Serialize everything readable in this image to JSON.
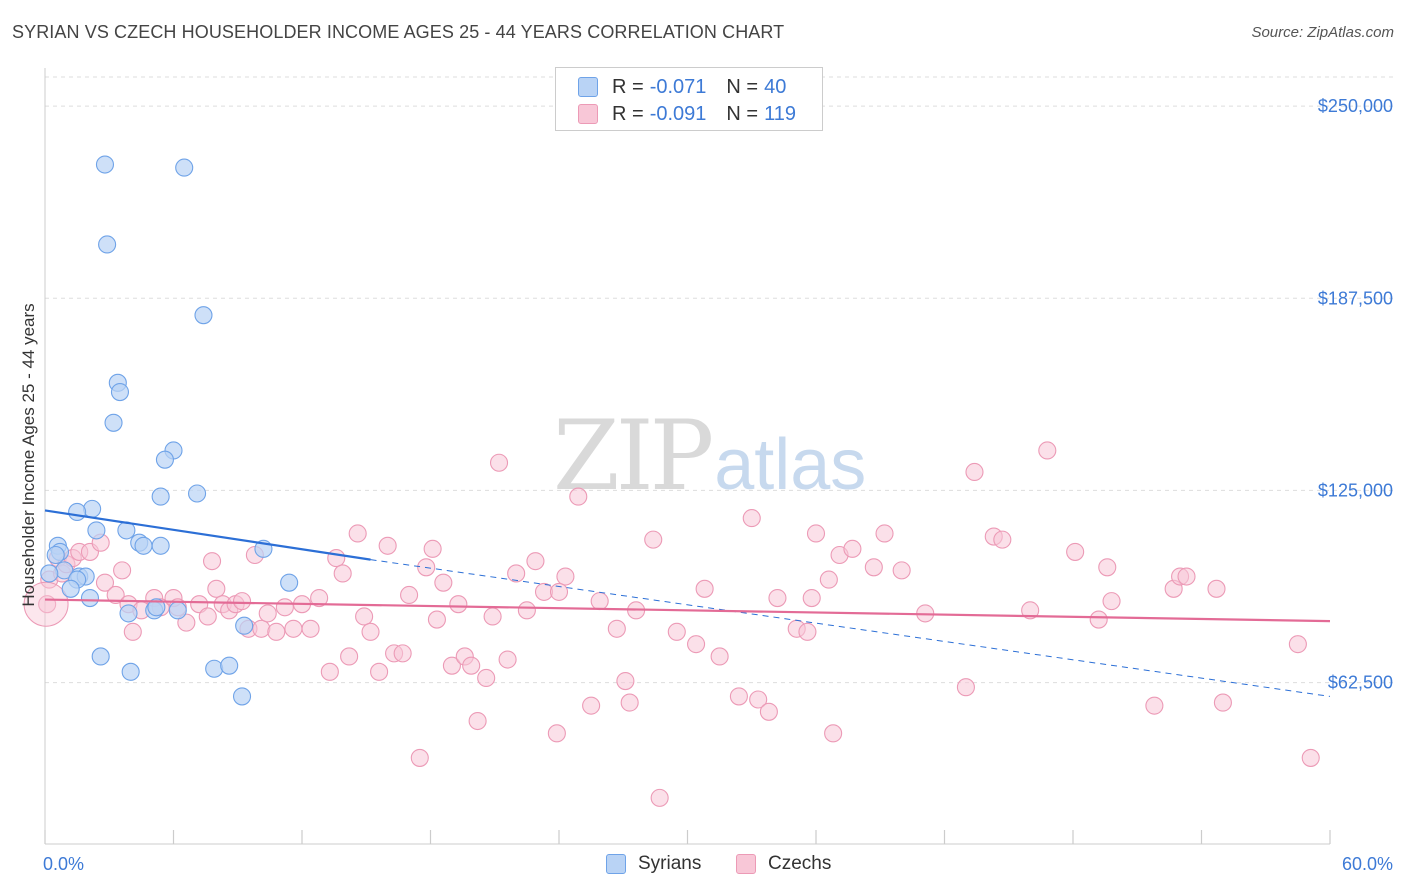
{
  "header": {
    "title": "SYRIAN VS CZECH HOUSEHOLDER INCOME AGES 25 - 44 YEARS CORRELATION CHART",
    "source": "Source: ZipAtlas.com"
  },
  "watermark": {
    "zip": "ZIP",
    "atlas": "atlas"
  },
  "legend": {
    "r_label": "R =",
    "n_label": "N =",
    "rows": [
      {
        "series": "Syrians",
        "r": "-0.071",
        "n": "40",
        "color": "#6fa3e8",
        "fill": "#b9d3f5"
      },
      {
        "series": "Czechs",
        "r": "-0.091",
        "n": "119",
        "color": "#ec9ab6",
        "fill": "#f8c7d7"
      }
    ]
  },
  "bottom_legend": [
    "Syrians",
    "Czechs"
  ],
  "colors": {
    "syrian_point_fill": "#b9d3f5",
    "syrian_point_stroke": "#6fa3e8",
    "czech_point_fill": "#f8c7d7",
    "czech_point_stroke": "#ec9ab6",
    "syrian_line": "#2c6fd6",
    "czech_line": "#e36b96",
    "grid": "#dddddd",
    "tick_label": "#3d7ad6"
  },
  "chart_data": {
    "type": "scatter",
    "title": "SYRIAN VS CZECH HOUSEHOLDER INCOME AGES 25 - 44 YEARS CORRELATION CHART",
    "xlabel": "",
    "ylabel": "Householder Income Ages 25 - 44 years",
    "xlim": [
      0,
      60
    ],
    "ylim": [
      10000,
      265000
    ],
    "x_tick_labels": [
      "0.0%",
      "60.0%"
    ],
    "y_ticks": [
      62500,
      125000,
      187500,
      250000
    ],
    "y_tick_labels": [
      "$62,500",
      "$125,000",
      "$187,500",
      "$250,000"
    ],
    "series": [
      {
        "name": "Syrians",
        "r": -0.071,
        "n": 40,
        "points": [
          [
            2.8,
            231000
          ],
          [
            6.5,
            230000
          ],
          [
            2.9,
            205000
          ],
          [
            7.4,
            182000
          ],
          [
            3.4,
            160000
          ],
          [
            3.5,
            157000
          ],
          [
            3.2,
            147000
          ],
          [
            6.0,
            138000
          ],
          [
            5.6,
            135000
          ],
          [
            5.4,
            123000
          ],
          [
            7.1,
            124000
          ],
          [
            2.2,
            119000
          ],
          [
            1.5,
            118000
          ],
          [
            2.4,
            112000
          ],
          [
            3.8,
            112000
          ],
          [
            4.4,
            108000
          ],
          [
            4.6,
            107000
          ],
          [
            5.4,
            107000
          ],
          [
            10.2,
            106000
          ],
          [
            0.6,
            107000
          ],
          [
            0.7,
            105000
          ],
          [
            0.5,
            104000
          ],
          [
            0.9,
            99000
          ],
          [
            1.6,
            97000
          ],
          [
            1.9,
            97000
          ],
          [
            1.5,
            96000
          ],
          [
            1.2,
            93000
          ],
          [
            2.1,
            90000
          ],
          [
            11.4,
            95000
          ],
          [
            5.1,
            86000
          ],
          [
            5.2,
            87000
          ],
          [
            6.2,
            86000
          ],
          [
            3.9,
            85000
          ],
          [
            9.3,
            81000
          ],
          [
            2.6,
            71000
          ],
          [
            7.9,
            67000
          ],
          [
            8.6,
            68000
          ],
          [
            4.0,
            66000
          ],
          [
            9.2,
            58000
          ],
          [
            0.2,
            98000
          ]
        ],
        "trend": {
          "x": [
            0,
            15.2
          ],
          "y": [
            118500,
            102500
          ],
          "dashed_extension": {
            "x": [
              15.2,
              60
            ],
            "y": [
              102500,
              58000
            ]
          }
        }
      },
      {
        "name": "Czechs",
        "r": -0.091,
        "n": 119,
        "points": [
          [
            0.1,
            88000
          ],
          [
            0.2,
            96000
          ],
          [
            0.6,
            103000
          ],
          [
            0.8,
            98000
          ],
          [
            1.0,
            101000
          ],
          [
            1.3,
            103000
          ],
          [
            1.6,
            105000
          ],
          [
            2.1,
            105000
          ],
          [
            2.6,
            108000
          ],
          [
            2.8,
            95000
          ],
          [
            3.3,
            91000
          ],
          [
            3.6,
            99000
          ],
          [
            3.9,
            88000
          ],
          [
            4.1,
            79000
          ],
          [
            4.5,
            86000
          ],
          [
            5.1,
            90000
          ],
          [
            5.4,
            87000
          ],
          [
            6.0,
            90000
          ],
          [
            6.2,
            87000
          ],
          [
            6.6,
            82000
          ],
          [
            7.2,
            88000
          ],
          [
            7.6,
            84000
          ],
          [
            7.8,
            102000
          ],
          [
            8.0,
            93000
          ],
          [
            8.3,
            88000
          ],
          [
            8.6,
            86000
          ],
          [
            8.9,
            88000
          ],
          [
            9.2,
            89000
          ],
          [
            9.5,
            80000
          ],
          [
            9.8,
            104000
          ],
          [
            10.1,
            80000
          ],
          [
            10.4,
            85000
          ],
          [
            10.8,
            79000
          ],
          [
            11.2,
            87000
          ],
          [
            11.6,
            80000
          ],
          [
            12.0,
            88000
          ],
          [
            12.4,
            80000
          ],
          [
            12.8,
            90000
          ],
          [
            13.3,
            66000
          ],
          [
            13.6,
            103000
          ],
          [
            13.9,
            98000
          ],
          [
            14.2,
            71000
          ],
          [
            14.6,
            111000
          ],
          [
            14.9,
            84000
          ],
          [
            15.2,
            79000
          ],
          [
            15.6,
            66000
          ],
          [
            16.0,
            107000
          ],
          [
            16.3,
            72000
          ],
          [
            16.7,
            72000
          ],
          [
            17.0,
            91000
          ],
          [
            17.5,
            38000
          ],
          [
            17.8,
            100000
          ],
          [
            18.1,
            106000
          ],
          [
            18.3,
            83000
          ],
          [
            18.6,
            95000
          ],
          [
            19.0,
            68000
          ],
          [
            19.3,
            88000
          ],
          [
            19.6,
            71000
          ],
          [
            19.9,
            68000
          ],
          [
            20.2,
            50000
          ],
          [
            20.6,
            64000
          ],
          [
            20.9,
            84000
          ],
          [
            21.2,
            134000
          ],
          [
            21.6,
            70000
          ],
          [
            22.0,
            98000
          ],
          [
            22.5,
            86000
          ],
          [
            22.9,
            102000
          ],
          [
            23.3,
            92000
          ],
          [
            23.9,
            46000
          ],
          [
            24.3,
            97000
          ],
          [
            24.9,
            123000
          ],
          [
            25.5,
            55000
          ],
          [
            25.9,
            89000
          ],
          [
            26.7,
            80000
          ],
          [
            27.3,
            56000
          ],
          [
            27.6,
            86000
          ],
          [
            28.4,
            109000
          ],
          [
            28.7,
            25000
          ],
          [
            29.5,
            79000
          ],
          [
            30.4,
            75000
          ],
          [
            30.8,
            93000
          ],
          [
            31.5,
            71000
          ],
          [
            32.4,
            58000
          ],
          [
            33.0,
            116000
          ],
          [
            33.3,
            57000
          ],
          [
            33.8,
            53000
          ],
          [
            34.2,
            90000
          ],
          [
            35.1,
            80000
          ],
          [
            35.6,
            79000
          ],
          [
            35.8,
            90000
          ],
          [
            36.0,
            111000
          ],
          [
            36.6,
            96000
          ],
          [
            36.8,
            46000
          ],
          [
            37.1,
            104000
          ],
          [
            37.7,
            106000
          ],
          [
            38.7,
            100000
          ],
          [
            39.2,
            111000
          ],
          [
            40.0,
            99000
          ],
          [
            41.1,
            85000
          ],
          [
            43.0,
            61000
          ],
          [
            43.4,
            131000
          ],
          [
            44.3,
            110000
          ],
          [
            44.7,
            109000
          ],
          [
            46.0,
            86000
          ],
          [
            46.8,
            138000
          ],
          [
            48.1,
            105000
          ],
          [
            49.2,
            83000
          ],
          [
            49.6,
            100000
          ],
          [
            49.8,
            89000
          ],
          [
            51.8,
            55000
          ],
          [
            52.7,
            93000
          ],
          [
            53.0,
            97000
          ],
          [
            53.3,
            97000
          ],
          [
            54.7,
            93000
          ],
          [
            58.5,
            75000
          ],
          [
            59.1,
            38000
          ],
          [
            55.0,
            56000
          ],
          [
            27.1,
            63000
          ],
          [
            24.0,
            92000
          ]
        ],
        "trend": {
          "x": [
            0,
            60
          ],
          "y": [
            89500,
            82500
          ]
        }
      }
    ]
  }
}
